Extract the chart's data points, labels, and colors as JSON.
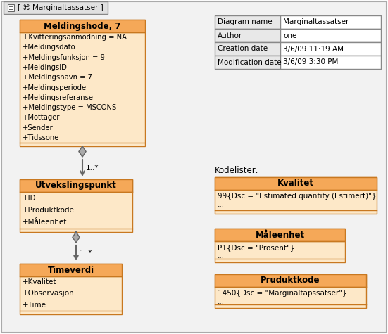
{
  "bg_color": "#ffffff",
  "outer_bg": "#f0f0f0",
  "title_tab": "Marginaltassatser",
  "header_fill": "#f5a858",
  "body_fill": "#fde8c8",
  "outline_color": "#c87820",
  "table_col1_bg": "#e8e8e8",
  "table_col2_bg": "#ffffff",
  "table_border": "#888888",
  "meldingshode_title": "Meldingshode, 7",
  "meldingshode_attrs": [
    "+Kvitteringsanmodning = NA",
    "+Meldingsdato",
    "+Meldingsfunksjon = 9",
    "+MeldingsID",
    "+Meldingsnavn = 7",
    "+Meldingsperiode",
    "+Meldingsreferanse",
    "+Meldingstype = MSCONS",
    "+Mottager",
    "+Sender",
    "+Tidssone"
  ],
  "utvekslingspunkt_title": "Utvekslingspunkt",
  "utvekslingspunkt_attrs": [
    "+ID",
    "+Produktkode",
    "+Måleenhet"
  ],
  "timeverdi_title": "Timeverdi",
  "timeverdi_attrs": [
    "+Kvalitet",
    "+Observasjon",
    "+Time"
  ],
  "info_table_rows": [
    [
      "Diagram name",
      "Marginaltassatser"
    ],
    [
      "Author",
      "one"
    ],
    [
      "Creation date",
      "3/6/09 11:19 AM"
    ],
    [
      "Modification date",
      "3/6/09 3:30 PM"
    ]
  ],
  "kodelister_label": "Kodelister:",
  "kvalitet_title": "Kvalitet",
  "kvalitet_body": "99{Dsc = \"Estimated quantity (Estimert)\"}\n...",
  "maaleenhet_title": "Måleenhet",
  "maaleenhet_body": "P1{Dsc = \"Prosent\"}\n...",
  "pruduktkode_title": "Pruduktkode",
  "pruduktkode_body": "1450{Dsc = \"Marginaltapssatser\"}\n...",
  "arrow_label_1": "1..*",
  "arrow_label_2": "1..*"
}
